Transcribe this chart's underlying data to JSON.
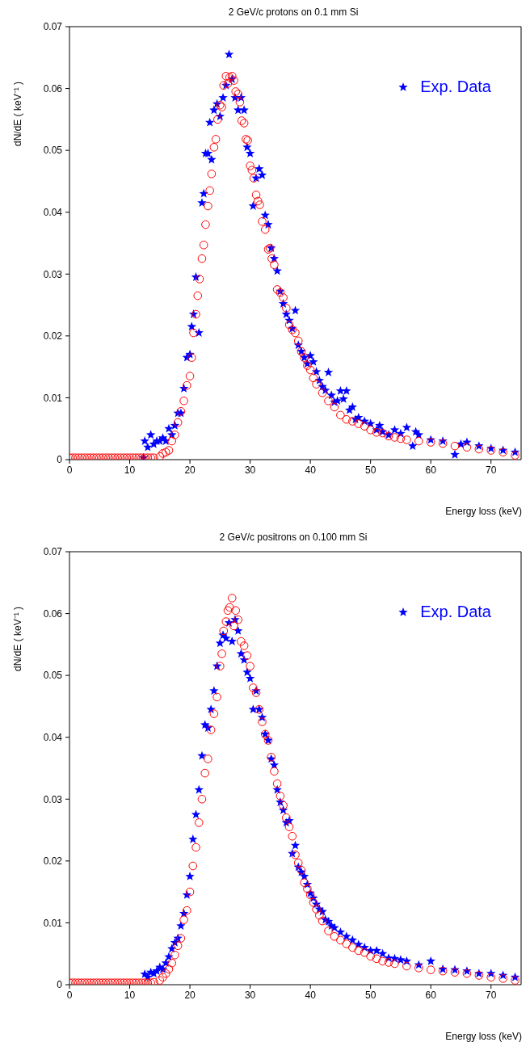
{
  "chart_data": [
    {
      "type": "scatter",
      "title": "2 GeV/c protons on 0.1 mm Si",
      "xlabel": "Energy loss (keV)",
      "ylabel": "dN/dE ( keV⁻¹ )",
      "xlim": [
        0,
        75
      ],
      "xticks": [
        0,
        10,
        20,
        30,
        40,
        50,
        60,
        70
      ],
      "ylim": [
        0,
        0.07
      ],
      "yticks": [
        0,
        0.01,
        0.02,
        0.03,
        0.04,
        0.05,
        0.06,
        0.07
      ],
      "legend": "top right",
      "series": [
        {
          "name": "Exp. Data",
          "color": "#0000ff",
          "marker": "star",
          "x": [
            12.3,
            12.5,
            13,
            13.5,
            14,
            14.5,
            15,
            15.5,
            16,
            16.5,
            17,
            17.5,
            18,
            18.5,
            19,
            19.5,
            20,
            20.3,
            20.6,
            21,
            21.5,
            22,
            22.3,
            22.6,
            23,
            23.3,
            23.6,
            24,
            24.5,
            25,
            25.5,
            26,
            26.5,
            27,
            27.5,
            28,
            28.5,
            29,
            29.5,
            30,
            30.5,
            31,
            31.5,
            32,
            32.5,
            33,
            33.5,
            34,
            34.5,
            35,
            35.5,
            36,
            36.5,
            37,
            37.5,
            38,
            38.5,
            39,
            39.5,
            40,
            40.5,
            41,
            41.5,
            42,
            42.5,
            43,
            43.5,
            44,
            44.5,
            45,
            45.5,
            46,
            46.5,
            47,
            47.5,
            48,
            49,
            50,
            51,
            51.5,
            52,
            53,
            54,
            55,
            56,
            57,
            57.5,
            58,
            60,
            62,
            64,
            65,
            66,
            68,
            70,
            72,
            74
          ],
          "values": [
            0.0003,
            0.003,
            0.002,
            0.004,
            0.0025,
            0.003,
            0.003,
            0.0035,
            0.003,
            0.005,
            0.004,
            0.0055,
            0.0075,
            0.0075,
            0.0115,
            0.0165,
            0.017,
            0.0215,
            0.0235,
            0.0295,
            0.0205,
            0.0415,
            0.043,
            0.0495,
            0.0495,
            0.0545,
            0.0485,
            0.0565,
            0.0575,
            0.0555,
            0.0585,
            0.0605,
            0.0655,
            0.0615,
            0.0585,
            0.0565,
            0.0585,
            0.0565,
            0.0505,
            0.0495,
            0.041,
            0.0455,
            0.047,
            0.046,
            0.0395,
            0.038,
            0.0342,
            0.0325,
            0.0305,
            0.0272,
            0.0252,
            0.0235,
            0.0225,
            0.0212,
            0.0241,
            0.0185,
            0.0175,
            0.0165,
            0.0155,
            0.0168,
            0.0158,
            0.0142,
            0.0128,
            0.0118,
            0.0112,
            0.0141,
            0.0104,
            0.0093,
            0.0095,
            0.0111,
            0.0098,
            0.0111,
            0.008,
            0.0085,
            0.0065,
            0.0068,
            0.0062,
            0.0058,
            0.0048,
            0.0055,
            0.0045,
            0.004,
            0.0048,
            0.0042,
            0.0052,
            0.0022,
            0.0045,
            0.004,
            0.0032,
            0.003,
            0.0008,
            0.0025,
            0.0028,
            0.0022,
            0.0018,
            0.0015,
            0.0012
          ]
        },
        {
          "color": "#ff0000",
          "marker": "circle",
          "x": [
            0,
            0.5,
            1,
            1.5,
            2,
            2.5,
            3,
            3.5,
            4,
            4.5,
            5,
            5.5,
            6,
            6.5,
            7,
            7.5,
            8,
            8.5,
            9,
            9.5,
            10,
            10.5,
            11,
            11.5,
            12,
            12.5,
            13,
            13.5,
            14,
            15,
            15.5,
            16,
            16.5,
            17,
            17.5,
            18,
            18.5,
            19,
            19.5,
            20,
            20.3,
            20.6,
            21,
            21.3,
            21.6,
            22,
            22.3,
            22.6,
            23,
            23.3,
            23.6,
            24,
            24.3,
            24.6,
            25,
            25.3,
            25.6,
            26,
            26.3,
            26.6,
            27,
            27.3,
            27.6,
            28,
            28.3,
            28.6,
            29,
            29.3,
            29.6,
            30,
            30.3,
            30.6,
            31,
            31.3,
            31.6,
            32,
            32.5,
            33,
            33.3,
            33.6,
            34,
            34.5,
            35,
            35.5,
            36,
            36.5,
            37,
            37.5,
            38,
            38.5,
            39,
            39.5,
            40,
            40.5,
            41,
            42,
            43,
            44,
            45,
            46,
            47,
            48,
            49,
            50,
            51,
            52,
            53,
            54,
            55,
            56,
            58,
            60,
            62,
            64,
            66,
            68,
            70,
            72,
            74
          ],
          "values": [
            0.0003,
            0.0003,
            0.0003,
            0.0003,
            0.0003,
            0.0003,
            0.0003,
            0.0003,
            0.0003,
            0.0003,
            0.0003,
            0.0003,
            0.0003,
            0.0003,
            0.0003,
            0.0003,
            0.0003,
            0.0003,
            0.0003,
            0.0003,
            0.0003,
            0.0003,
            0.0003,
            0.0003,
            0.0003,
            0.0003,
            0.0003,
            0.0003,
            0.0003,
            0.0005,
            0.001,
            0.0012,
            0.0015,
            0.003,
            0.004,
            0.006,
            0.0078,
            0.0095,
            0.012,
            0.0135,
            0.0165,
            0.0205,
            0.0235,
            0.0265,
            0.0292,
            0.0325,
            0.0347,
            0.038,
            0.041,
            0.0435,
            0.0462,
            0.0505,
            0.0518,
            0.055,
            0.0573,
            0.057,
            0.0605,
            0.062,
            0.0608,
            0.0618,
            0.062,
            0.0613,
            0.0595,
            0.0591,
            0.0578,
            0.0548,
            0.0544,
            0.0518,
            0.0516,
            0.0475,
            0.0468,
            0.0455,
            0.0428,
            0.0418,
            0.0412,
            0.0385,
            0.0372,
            0.034,
            0.0342,
            0.0325,
            0.0315,
            0.0275,
            0.027,
            0.0262,
            0.0245,
            0.0218,
            0.021,
            0.0205,
            0.0192,
            0.0175,
            0.0165,
            0.0152,
            0.0145,
            0.0132,
            0.0122,
            0.0108,
            0.0095,
            0.0085,
            0.0072,
            0.0065,
            0.0062,
            0.0058,
            0.0054,
            0.0048,
            0.0044,
            0.0043,
            0.0038,
            0.0036,
            0.0034,
            0.0032,
            0.003,
            0.0028,
            0.0026,
            0.0022,
            0.002,
            0.0017,
            0.0015,
            0.0012,
            0.0007
          ]
        }
      ]
    },
    {
      "type": "scatter",
      "title": "2 GeV/c positrons on 0.100 mm Si",
      "xlabel": "Energy loss (keV)",
      "ylabel": "dN/dE ( keV⁻¹ )",
      "xlim": [
        0,
        75
      ],
      "xticks": [
        0,
        10,
        20,
        30,
        40,
        50,
        60,
        70
      ],
      "ylim": [
        0,
        0.07
      ],
      "yticks": [
        0,
        0.01,
        0.02,
        0.03,
        0.04,
        0.05,
        0.06,
        0.07
      ],
      "legend": "top right",
      "series": [
        {
          "name": "Exp. Data",
          "color": "#0000ff",
          "marker": "star",
          "x": [
            12.5,
            13,
            13.5,
            14,
            14.5,
            15,
            15.5,
            16,
            16.5,
            17,
            17.5,
            18,
            18.5,
            19,
            19.5,
            20,
            20.5,
            21,
            21.5,
            22,
            22.5,
            23,
            23.5,
            24,
            24.5,
            25,
            25.5,
            26,
            26.5,
            27,
            27.5,
            28,
            28.5,
            29,
            29.5,
            30,
            30.5,
            31,
            31.5,
            32,
            32.5,
            33,
            33.5,
            34,
            34.5,
            35,
            35.5,
            36,
            36.5,
            37,
            37.5,
            38,
            38.5,
            39,
            39.5,
            40,
            40.5,
            41,
            41.5,
            42,
            42.5,
            43,
            43.5,
            44,
            45,
            46,
            47,
            48,
            49,
            50,
            51,
            52,
            53,
            54,
            55,
            56,
            58,
            60,
            62,
            64,
            66,
            68,
            70,
            72,
            74
          ],
          "values": [
            0.0017,
            0.0012,
            0.002,
            0.0018,
            0.0022,
            0.0028,
            0.0025,
            0.0035,
            0.0045,
            0.0058,
            0.0068,
            0.0075,
            0.0095,
            0.0115,
            0.0145,
            0.0175,
            0.0235,
            0.0275,
            0.0315,
            0.037,
            0.042,
            0.0415,
            0.0445,
            0.0475,
            0.0515,
            0.0552,
            0.0565,
            0.056,
            0.0585,
            0.0555,
            0.059,
            0.0572,
            0.0535,
            0.0525,
            0.0505,
            0.0495,
            0.0445,
            0.0475,
            0.0445,
            0.0432,
            0.0405,
            0.0395,
            0.0365,
            0.0355,
            0.0315,
            0.0295,
            0.0282,
            0.0262,
            0.0265,
            0.0212,
            0.0225,
            0.019,
            0.0182,
            0.0175,
            0.0162,
            0.0148,
            0.014,
            0.013,
            0.0122,
            0.0118,
            0.0105,
            0.0102,
            0.0095,
            0.0092,
            0.0085,
            0.0078,
            0.0072,
            0.0065,
            0.006,
            0.0055,
            0.0055,
            0.005,
            0.0043,
            0.0042,
            0.004,
            0.0038,
            0.0032,
            0.0038,
            0.0025,
            0.0024,
            0.0022,
            0.0018,
            0.0018,
            0.0015,
            0.0012
          ]
        },
        {
          "color": "#ff0000",
          "marker": "circle",
          "x": [
            0,
            0.5,
            1,
            1.5,
            2,
            2.5,
            3,
            3.5,
            4,
            4.5,
            5,
            5.5,
            6,
            6.5,
            7,
            7.5,
            8,
            8.5,
            9,
            9.5,
            10,
            10.5,
            11,
            11.5,
            12,
            12.5,
            13,
            13.5,
            14,
            15,
            15.5,
            16,
            16.5,
            17,
            17.5,
            18,
            18.5,
            19,
            19.5,
            20,
            20.5,
            21,
            21.5,
            22,
            22.5,
            23,
            23.5,
            24,
            24.5,
            25,
            25.3,
            25.6,
            26,
            26.3,
            26.6,
            27,
            27.3,
            27.6,
            28,
            28.5,
            29,
            29.5,
            30,
            30.5,
            31,
            31.5,
            32,
            32.5,
            33,
            33.5,
            34,
            34.5,
            35,
            35.5,
            36,
            36.5,
            37,
            37.5,
            38,
            38.5,
            39,
            39.5,
            40,
            40.5,
            41,
            41.5,
            42,
            43,
            44,
            45,
            46,
            47,
            48,
            49,
            50,
            51,
            52,
            53,
            54,
            56,
            58,
            60,
            62,
            64,
            66,
            68,
            70,
            72,
            74
          ],
          "values": [
            0.0003,
            0.0003,
            0.0003,
            0.0003,
            0.0003,
            0.0003,
            0.0003,
            0.0003,
            0.0003,
            0.0003,
            0.0003,
            0.0003,
            0.0003,
            0.0003,
            0.0003,
            0.0003,
            0.0003,
            0.0003,
            0.0003,
            0.0003,
            0.0003,
            0.0003,
            0.0003,
            0.0003,
            0.0003,
            0.0003,
            0.0003,
            0.0003,
            0.0004,
            0.0007,
            0.0012,
            0.0018,
            0.0025,
            0.0035,
            0.0048,
            0.0063,
            0.0075,
            0.0105,
            0.012,
            0.015,
            0.0192,
            0.0222,
            0.0262,
            0.03,
            0.0342,
            0.0365,
            0.0412,
            0.0438,
            0.0465,
            0.0515,
            0.0535,
            0.0572,
            0.0587,
            0.0605,
            0.061,
            0.0625,
            0.058,
            0.0605,
            0.059,
            0.0555,
            0.0548,
            0.0532,
            0.0515,
            0.048,
            0.0472,
            0.0445,
            0.0425,
            0.0405,
            0.0395,
            0.0368,
            0.0345,
            0.0325,
            0.0305,
            0.029,
            0.027,
            0.0255,
            0.024,
            0.021,
            0.0197,
            0.0185,
            0.0165,
            0.0155,
            0.0145,
            0.0133,
            0.0122,
            0.0112,
            0.0103,
            0.0087,
            0.0078,
            0.0072,
            0.0066,
            0.006,
            0.0055,
            0.0052,
            0.0046,
            0.0042,
            0.0038,
            0.0036,
            0.0034,
            0.003,
            0.0027,
            0.0024,
            0.0022,
            0.002,
            0.0018,
            0.0015,
            0.0012,
            0.001,
            0.0007
          ]
        }
      ]
    }
  ]
}
